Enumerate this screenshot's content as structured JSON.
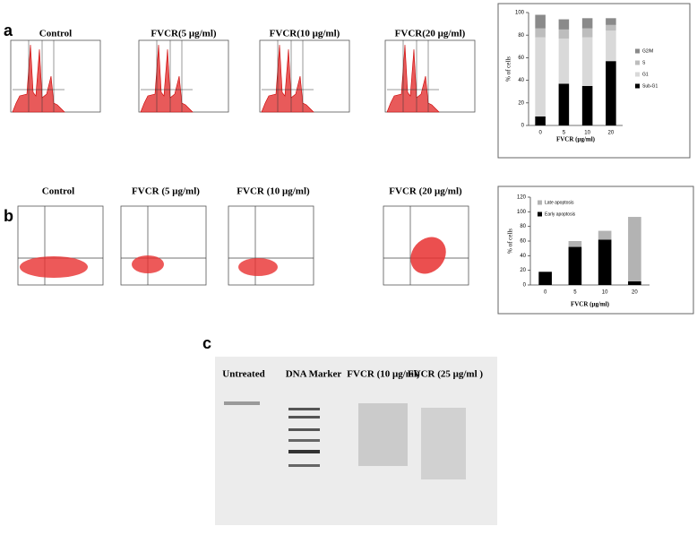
{
  "panel_labels": [
    "a",
    "b",
    "c"
  ],
  "histogram_titles": [
    "Control",
    "FVCR(5 μg/ml)",
    "FVCR(10 μg/ml)",
    "FVCR(20 μg/ml)"
  ],
  "scatter_titles": [
    "Control",
    "FVCR (5 μg/ml)",
    "FVCR (10 μg/ml)",
    "FVCR (20 μg/ml)"
  ],
  "gel_lanes": [
    "Untreated",
    "DNA Marker",
    "FVCR (10 μg/ml)",
    "FVCR (25 μg/ml )"
  ],
  "chart_data": [
    {
      "type": "bar",
      "stacked": true,
      "legend": "right",
      "ylabel": "% of cells",
      "xlabel": "FVCR (μg/ml)",
      "categories": [
        "0",
        "5",
        "10",
        "20"
      ],
      "ylim": [
        0,
        100
      ],
      "yticks": [
        0,
        20,
        40,
        60,
        80,
        100
      ],
      "series": [
        {
          "name": "Sub-G1",
          "color": "#000000",
          "values": [
            8,
            37,
            35,
            57
          ]
        },
        {
          "name": "G1",
          "color": "#d9d9d9",
          "values": [
            70,
            40,
            43,
            27
          ]
        },
        {
          "name": "S",
          "color": "#bdbdbd",
          "values": [
            8,
            8,
            8,
            5
          ]
        },
        {
          "name": "G2/M",
          "color": "#8a8a8a",
          "values": [
            12,
            9,
            9,
            6
          ]
        }
      ]
    },
    {
      "type": "bar",
      "stacked": true,
      "legend": "top-left",
      "ylabel": "% of cells",
      "xlabel": "FVCR (μg/ml)",
      "categories": [
        "0",
        "5",
        "10",
        "20"
      ],
      "ylim": [
        0,
        120
      ],
      "yticks": [
        0,
        20,
        40,
        60,
        80,
        100,
        120
      ],
      "series": [
        {
          "name": "Early apoptosis",
          "color": "#000000",
          "values": [
            18,
            52,
            62,
            5
          ]
        },
        {
          "name": "Late apoptosis",
          "color": "#b3b3b3",
          "values": [
            0,
            8,
            12,
            88
          ]
        }
      ]
    }
  ]
}
